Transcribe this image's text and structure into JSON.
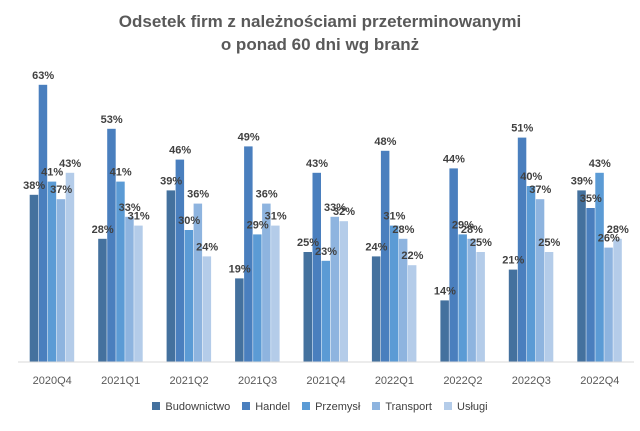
{
  "chart_data": {
    "type": "bar",
    "title_lines": [
      "Odsetek firm z należnościami przeterminowanymi",
      "o ponad 60 dni wg branż"
    ],
    "categories": [
      "2020Q4",
      "2021Q1",
      "2021Q2",
      "2021Q3",
      "2021Q4",
      "2022Q1",
      "2022Q2",
      "2022Q3",
      "2022Q4"
    ],
    "series": [
      {
        "name": "Budownictwo",
        "color": "#44719E",
        "values": [
          38,
          28,
          39,
          19,
          25,
          24,
          14,
          21,
          39
        ]
      },
      {
        "name": "Handel",
        "color": "#4A7FBE",
        "values": [
          63,
          53,
          46,
          49,
          43,
          48,
          44,
          51,
          35
        ]
      },
      {
        "name": "Przemysł",
        "color": "#5B9BD5",
        "values": [
          41,
          41,
          30,
          29,
          23,
          31,
          29,
          40,
          43
        ]
      },
      {
        "name": "Transport",
        "color": "#8EB4DF",
        "values": [
          37,
          33,
          36,
          36,
          33,
          28,
          28,
          37,
          26
        ]
      },
      {
        "name": "Usługi",
        "color": "#B4CCE9",
        "values": [
          43,
          31,
          24,
          31,
          32,
          22,
          25,
          25,
          28
        ]
      }
    ],
    "value_suffix": "%",
    "ylim": [
      0,
      70
    ],
    "grid": false,
    "legend": "bottom"
  }
}
